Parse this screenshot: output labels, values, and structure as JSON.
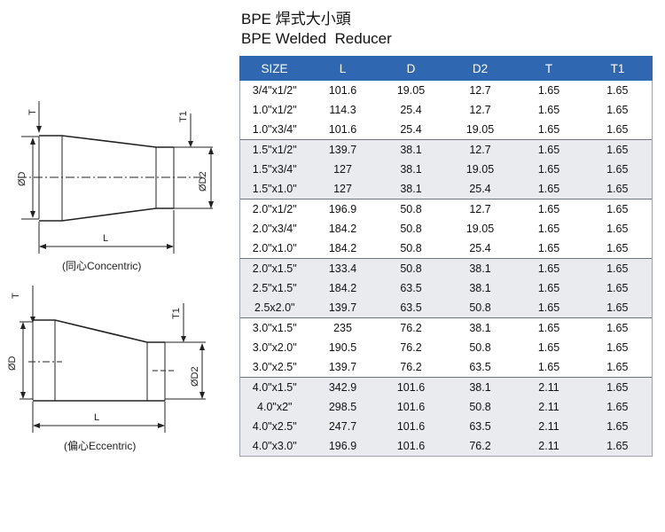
{
  "header": {
    "title": "BPE 焊式大小頭",
    "subtitle": "BPE Welded  Reducer"
  },
  "diagrams": {
    "concentric": {
      "caption": "(同心Concentric)",
      "labels": {
        "t": "T",
        "t1": "T1",
        "d": "ØD",
        "d2": "ØD2",
        "l": "L"
      }
    },
    "eccentric": {
      "caption": "(偏心Eccentric)",
      "labels": {
        "t": "T",
        "t1": "T1",
        "d": "ØD",
        "d2": "ØD2",
        "l": "L"
      }
    }
  },
  "table": {
    "headers": [
      "SIZE",
      "L",
      "D",
      "D2",
      "T",
      "T1"
    ],
    "groups": [
      [
        [
          "3/4\"x1/2\"",
          "101.6",
          "19.05",
          "12.7",
          "1.65",
          "1.65"
        ],
        [
          "1.0\"x1/2\"",
          "114.3",
          "25.4",
          "12.7",
          "1.65",
          "1.65"
        ],
        [
          "1.0\"x3/4\"",
          "101.6",
          "25.4",
          "19.05",
          "1.65",
          "1.65"
        ]
      ],
      [
        [
          "1.5\"x1/2\"",
          "139.7",
          "38.1",
          "12.7",
          "1.65",
          "1.65"
        ],
        [
          "1.5\"x3/4\"",
          "127",
          "38.1",
          "19.05",
          "1.65",
          "1.65"
        ],
        [
          "1.5\"x1.0\"",
          "127",
          "38.1",
          "25.4",
          "1.65",
          "1.65"
        ]
      ],
      [
        [
          "2.0\"x1/2\"",
          "196.9",
          "50.8",
          "12.7",
          "1.65",
          "1.65"
        ],
        [
          "2.0\"x3/4\"",
          "184.2",
          "50.8",
          "19.05",
          "1.65",
          "1.65"
        ],
        [
          "2.0\"x1.0\"",
          "184.2",
          "50.8",
          "25.4",
          "1.65",
          "1.65"
        ]
      ],
      [
        [
          "2.0\"x1.5\"",
          "133.4",
          "50.8",
          "38.1",
          "1.65",
          "1.65"
        ],
        [
          "2.5\"x1.5\"",
          "184.2",
          "63.5",
          "38.1",
          "1.65",
          "1.65"
        ],
        [
          "2.5x2.0\"",
          "139.7",
          "63.5",
          "50.8",
          "1.65",
          "1.65"
        ]
      ],
      [
        [
          "3.0\"x1.5\"",
          "235",
          "76.2",
          "38.1",
          "1.65",
          "1.65"
        ],
        [
          "3.0\"x2.0\"",
          "190.5",
          "76.2",
          "50.8",
          "1.65",
          "1.65"
        ],
        [
          "3.0\"x2.5\"",
          "139.7",
          "76.2",
          "63.5",
          "1.65",
          "1.65"
        ]
      ],
      [
        [
          "4.0\"x1.5\"",
          "342.9",
          "101.6",
          "38.1",
          "2.11",
          "1.65"
        ],
        [
          "4.0\"x2\"",
          "298.5",
          "101.6",
          "50.8",
          "2.11",
          "1.65"
        ],
        [
          "4.0\"x2.5\"",
          "247.7",
          "101.6",
          "63.5",
          "2.11",
          "1.65"
        ],
        [
          "4.0\"x3.0\"",
          "196.9",
          "101.6",
          "76.2",
          "2.11",
          "1.65"
        ]
      ]
    ]
  }
}
